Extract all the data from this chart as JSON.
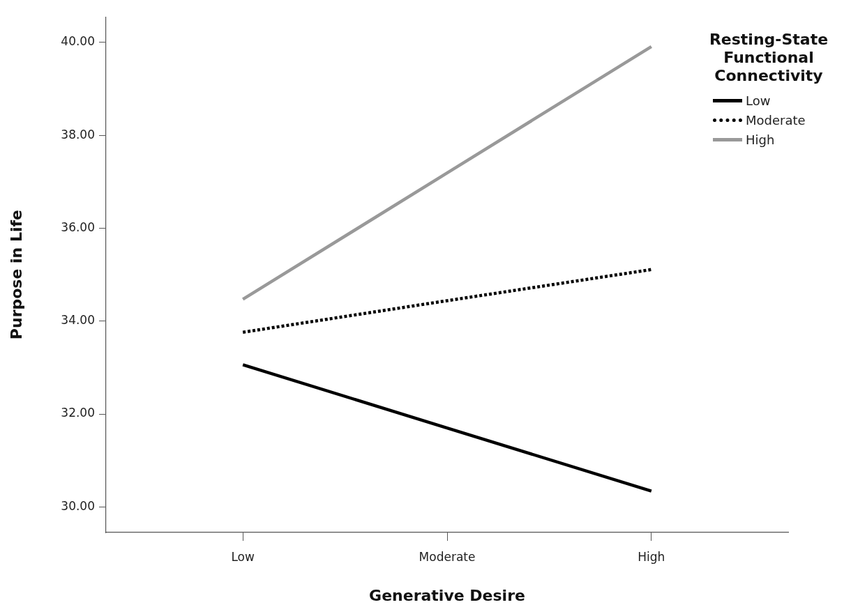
{
  "chart_data": {
    "type": "line",
    "xlabel": "Generative Desire",
    "ylabel": "Purpose in Life",
    "legend_title": "Resting-State Functional Connectivity",
    "categories": [
      "Low",
      "Moderate",
      "High"
    ],
    "series": [
      {
        "name": "Low",
        "color": "#000000",
        "line_style": "solid",
        "values": [
          33.06,
          31.7,
          30.34
        ]
      },
      {
        "name": "Moderate",
        "color": "#000000",
        "line_style": "dotted",
        "values": [
          33.76,
          34.44,
          35.11
        ]
      },
      {
        "name": "High",
        "color": "#999999",
        "line_style": "solid",
        "values": [
          34.47,
          37.19,
          39.91
        ]
      }
    ],
    "ylim": [
      29.45,
      40.55
    ],
    "yticks": [
      {
        "value": 30,
        "label": "30.00"
      },
      {
        "value": 32,
        "label": "32.00"
      },
      {
        "value": 34,
        "label": "34.00"
      },
      {
        "value": 36,
        "label": "36.00"
      },
      {
        "value": 38,
        "label": "38.00"
      },
      {
        "value": 40,
        "label": "40.00"
      }
    ],
    "grid": false,
    "legend": "top right",
    "marker": "none"
  }
}
